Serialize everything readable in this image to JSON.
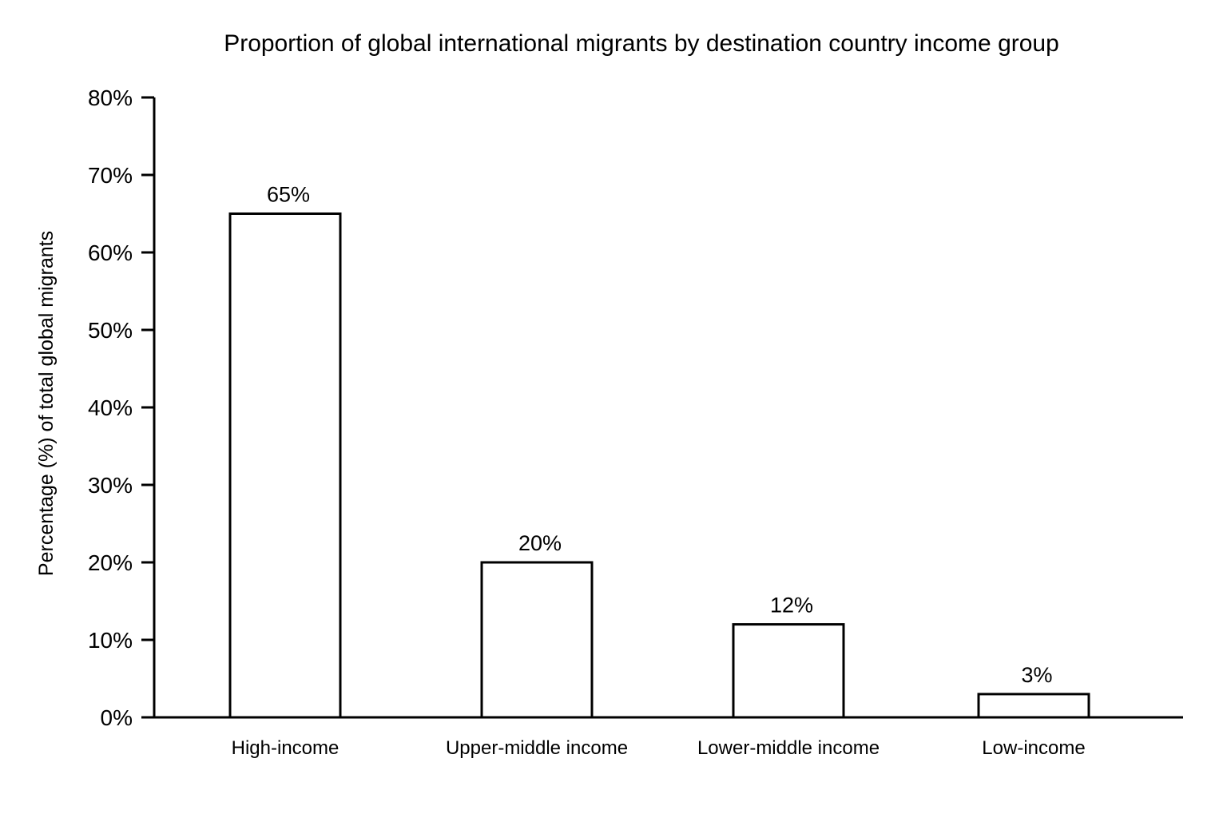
{
  "chart_data": {
    "type": "bar",
    "title": "Proportion of global international migrants by destination country income group",
    "xlabel": "",
    "ylabel": "Percentage (%) of total global migrants",
    "categories": [
      "High-income",
      "Upper-middle income",
      "Lower-middle income",
      "Low-income"
    ],
    "values": [
      65,
      20,
      12,
      3
    ],
    "value_labels": [
      "65%",
      "20%",
      "12%",
      "3%"
    ],
    "ylim": [
      0,
      80
    ],
    "yticks": [
      0,
      10,
      20,
      30,
      40,
      50,
      60,
      70,
      80
    ],
    "ytick_labels": [
      "0%",
      "10%",
      "20%",
      "30%",
      "40%",
      "50%",
      "60%",
      "70%",
      "80%"
    ],
    "grid": false,
    "legend": "none",
    "bar_fill": "#ffffff",
    "bar_stroke": "#000000"
  }
}
